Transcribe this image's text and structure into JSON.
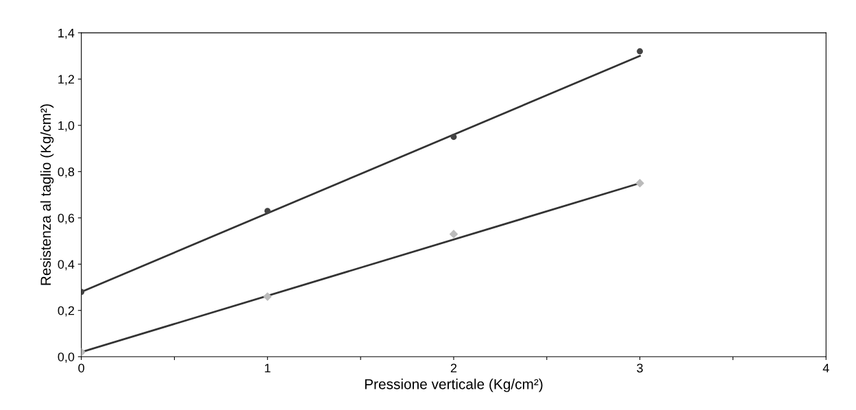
{
  "chart_data": {
    "type": "scatter",
    "xlabel": "Pressione verticale (Kg/cm²)",
    "ylabel": "Resistenza al taglio (Kg/cm²)",
    "xlim": [
      0,
      4
    ],
    "ylim": [
      0,
      1.4
    ],
    "xticks": [
      0,
      {
        "value": 0.5,
        "label": null
      },
      1,
      {
        "value": 1.5,
        "label": null
      },
      2,
      {
        "value": 2.5,
        "label": null
      },
      3,
      {
        "value": 3.5,
        "label": null
      },
      4
    ],
    "yticks": [
      {
        "value": 0,
        "label": "0,0"
      },
      {
        "value": 0.2,
        "label": "0,2"
      },
      {
        "value": 0.4,
        "label": "0,4"
      },
      {
        "value": 0.6,
        "label": "0,6"
      },
      {
        "value": 0.8,
        "label": "0,8"
      },
      {
        "value": 1.0,
        "label": "1,0"
      },
      {
        "value": 1.2,
        "label": "1,2"
      },
      {
        "value": 1.4,
        "label": "1,4"
      }
    ],
    "grid": false,
    "legend": false,
    "series": [
      {
        "color": "#444444",
        "marker": "circle",
        "x": [
          0,
          1,
          2,
          3
        ],
        "values": [
          0.28,
          0.63,
          0.95,
          1.32
        ]
      },
      {
        "type": "line",
        "color": "#333333",
        "line_style": "solid",
        "marker": "none",
        "x": [
          0,
          3
        ],
        "values": [
          0.28,
          1.3
        ]
      },
      {
        "color": "#bbbbbb",
        "marker": "diamond",
        "x": [
          0,
          1,
          2,
          3
        ],
        "values": [
          0.02,
          0.26,
          0.53,
          0.75
        ]
      },
      {
        "type": "line",
        "color": "#333333",
        "line_style": "solid",
        "marker": "none",
        "x": [
          0,
          3
        ],
        "values": [
          0.02,
          0.75
        ]
      }
    ]
  }
}
